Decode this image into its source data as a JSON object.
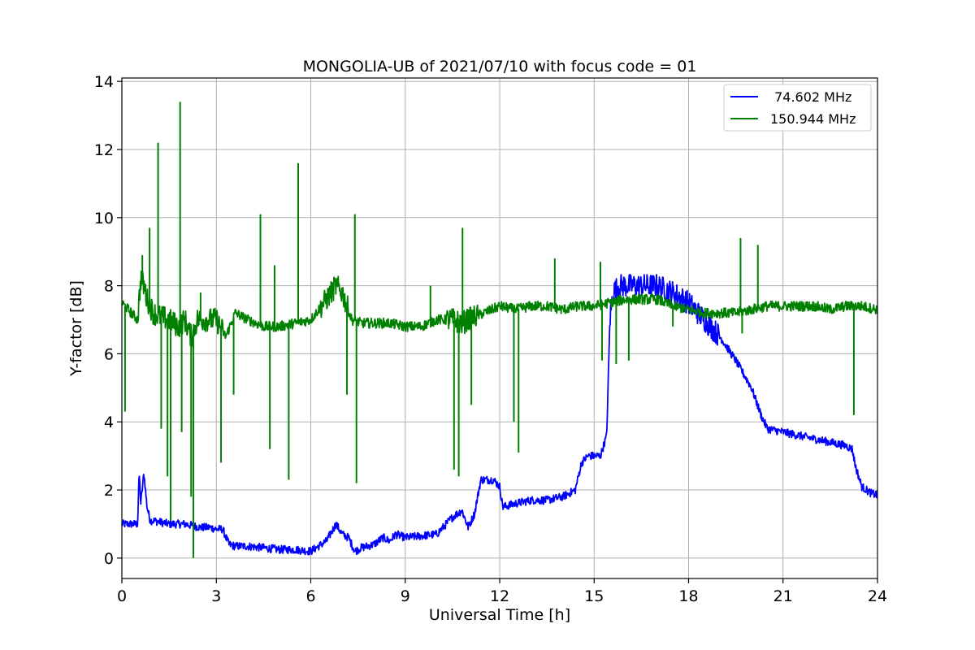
{
  "chart_data": {
    "type": "line",
    "title": "MONGOLIA-UB of 2021/07/10 with focus code = 01",
    "xlabel": "Universal Time [h]",
    "ylabel": "Y-factor [dB]",
    "xlim": [
      0,
      24
    ],
    "ylim": [
      -0.6,
      14.1
    ],
    "xticks": [
      0,
      3,
      6,
      9,
      12,
      15,
      18,
      21,
      24
    ],
    "yticks": [
      0,
      2,
      4,
      6,
      8,
      10,
      12,
      14
    ],
    "xtick_labels": [
      "0",
      "3",
      "6",
      "9",
      "12",
      "15",
      "18",
      "21",
      "24"
    ],
    "ytick_labels": [
      "0",
      "2",
      "4",
      "6",
      "8",
      "10",
      "12",
      "14"
    ],
    "grid": true,
    "legend_position": "top-right",
    "series": [
      {
        "name": " 74.602 MHz",
        "color": "#0000ff",
        "x": [
          0,
          0.5,
          0.55,
          0.6,
          0.7,
          0.8,
          0.9,
          1.0,
          1.5,
          2.0,
          2.5,
          2.8,
          3.0,
          3.2,
          3.4,
          3.6,
          4.0,
          4.5,
          5.0,
          5.5,
          6.0,
          6.5,
          6.8,
          7.0,
          7.2,
          7.4,
          7.6,
          8.0,
          8.3,
          8.5,
          8.7,
          9.0,
          9.5,
          10.0,
          10.3,
          10.5,
          10.8,
          11.0,
          11.2,
          11.4,
          11.8,
          12.0,
          12.1,
          12.5,
          13.0,
          13.5,
          14.0,
          14.2,
          14.4,
          14.6,
          14.8,
          15.0,
          15.2,
          15.4,
          15.5,
          15.6,
          15.8,
          16.0,
          16.5,
          17.0,
          17.5,
          18.0,
          18.5,
          19.0,
          19.5,
          20.0,
          20.3,
          20.5,
          21.0,
          21.5,
          22.0,
          22.5,
          23.0,
          23.2,
          23.3,
          23.5,
          23.8,
          24.0
        ],
        "y": [
          1.0,
          1.0,
          2.5,
          1.6,
          2.5,
          1.5,
          1.1,
          1.1,
          1.0,
          1.0,
          0.9,
          0.9,
          0.85,
          0.85,
          0.4,
          0.35,
          0.35,
          0.3,
          0.25,
          0.25,
          0.2,
          0.5,
          1.0,
          0.7,
          0.6,
          0.2,
          0.3,
          0.4,
          0.6,
          0.5,
          0.7,
          0.6,
          0.65,
          0.7,
          1.0,
          1.2,
          1.4,
          0.9,
          1.3,
          2.3,
          2.3,
          2.1,
          1.5,
          1.6,
          1.7,
          1.7,
          1.8,
          1.9,
          2.0,
          2.8,
          3.0,
          3.0,
          3.0,
          3.6,
          7.0,
          7.8,
          8.0,
          8.0,
          8.0,
          8.0,
          7.8,
          7.5,
          7.0,
          6.5,
          5.8,
          5.0,
          4.2,
          3.8,
          3.7,
          3.6,
          3.5,
          3.4,
          3.3,
          3.2,
          2.7,
          2.1,
          1.9,
          1.85
        ]
      },
      {
        "name": "150.944 MHz",
        "color": "#008000",
        "x": [
          0,
          0.1,
          0.5,
          0.6,
          0.7,
          0.8,
          1.0,
          1.2,
          1.5,
          1.8,
          2.0,
          2.2,
          2.4,
          2.6,
          3.0,
          3.3,
          3.6,
          4.0,
          4.5,
          5.0,
          5.5,
          6.0,
          6.5,
          6.8,
          7.0,
          7.3,
          7.6,
          8.0,
          8.5,
          9.0,
          9.5,
          10.0,
          10.5,
          10.8,
          11.0,
          11.5,
          12.0,
          12.5,
          13.0,
          13.5,
          14.0,
          14.5,
          15.0,
          15.5,
          16.0,
          16.5,
          17.0,
          17.5,
          18.0,
          18.5,
          19.0,
          19.5,
          20.0,
          20.5,
          21.0,
          21.5,
          22.0,
          22.5,
          23.0,
          23.5,
          24.0
        ],
        "y": [
          7.5,
          7.4,
          7.0,
          8.2,
          8.0,
          7.6,
          7.2,
          7.1,
          7.0,
          6.8,
          7.0,
          6.5,
          7.0,
          7.0,
          7.0,
          6.5,
          7.2,
          7.0,
          6.8,
          6.8,
          6.9,
          7.0,
          7.6,
          8.0,
          7.8,
          7.0,
          6.9,
          6.9,
          6.9,
          6.8,
          6.8,
          7.0,
          7.0,
          6.9,
          7.0,
          7.2,
          7.4,
          7.3,
          7.4,
          7.4,
          7.3,
          7.4,
          7.4,
          7.5,
          7.6,
          7.6,
          7.6,
          7.4,
          7.3,
          7.2,
          7.2,
          7.2,
          7.3,
          7.4,
          7.4,
          7.4,
          7.4,
          7.3,
          7.4,
          7.4,
          7.3
        ]
      }
    ],
    "spikes": [
      {
        "series": 1,
        "x": 0.1,
        "y": 4.3
      },
      {
        "series": 1,
        "x": 0.65,
        "y": 8.9
      },
      {
        "series": 1,
        "x": 0.88,
        "y": 9.7
      },
      {
        "series": 1,
        "x": 1.15,
        "y": 12.2
      },
      {
        "series": 1,
        "x": 1.25,
        "y": 3.8
      },
      {
        "series": 1,
        "x": 1.45,
        "y": 2.4
      },
      {
        "series": 1,
        "x": 1.55,
        "y": 1.1
      },
      {
        "series": 1,
        "x": 1.85,
        "y": 13.4
      },
      {
        "series": 1,
        "x": 1.9,
        "y": 3.7
      },
      {
        "series": 1,
        "x": 2.2,
        "y": 1.8
      },
      {
        "series": 1,
        "x": 2.27,
        "y": 0.0
      },
      {
        "series": 1,
        "x": 2.5,
        "y": 7.8
      },
      {
        "series": 1,
        "x": 3.15,
        "y": 2.8
      },
      {
        "series": 1,
        "x": 3.55,
        "y": 4.8
      },
      {
        "series": 1,
        "x": 4.4,
        "y": 10.1
      },
      {
        "series": 1,
        "x": 4.7,
        "y": 3.2
      },
      {
        "series": 1,
        "x": 4.85,
        "y": 8.6
      },
      {
        "series": 1,
        "x": 5.3,
        "y": 2.3
      },
      {
        "series": 1,
        "x": 5.6,
        "y": 11.6
      },
      {
        "series": 1,
        "x": 7.4,
        "y": 10.1
      },
      {
        "series": 1,
        "x": 7.45,
        "y": 2.2
      },
      {
        "series": 1,
        "x": 7.15,
        "y": 4.8
      },
      {
        "series": 1,
        "x": 9.8,
        "y": 8.0
      },
      {
        "series": 1,
        "x": 10.55,
        "y": 2.6
      },
      {
        "series": 1,
        "x": 10.7,
        "y": 2.4
      },
      {
        "series": 1,
        "x": 10.82,
        "y": 9.7
      },
      {
        "series": 1,
        "x": 11.1,
        "y": 4.5
      },
      {
        "series": 1,
        "x": 12.45,
        "y": 4.0
      },
      {
        "series": 1,
        "x": 12.6,
        "y": 3.1
      },
      {
        "series": 1,
        "x": 13.75,
        "y": 8.8
      },
      {
        "series": 1,
        "x": 15.2,
        "y": 8.7
      },
      {
        "series": 1,
        "x": 15.25,
        "y": 5.8
      },
      {
        "series": 1,
        "x": 15.7,
        "y": 5.7
      },
      {
        "series": 1,
        "x": 16.1,
        "y": 5.8
      },
      {
        "series": 1,
        "x": 17.5,
        "y": 6.8
      },
      {
        "series": 1,
        "x": 19.65,
        "y": 9.4
      },
      {
        "series": 1,
        "x": 19.7,
        "y": 6.6
      },
      {
        "series": 1,
        "x": 20.2,
        "y": 9.2
      },
      {
        "series": 1,
        "x": 23.25,
        "y": 4.2
      }
    ]
  }
}
